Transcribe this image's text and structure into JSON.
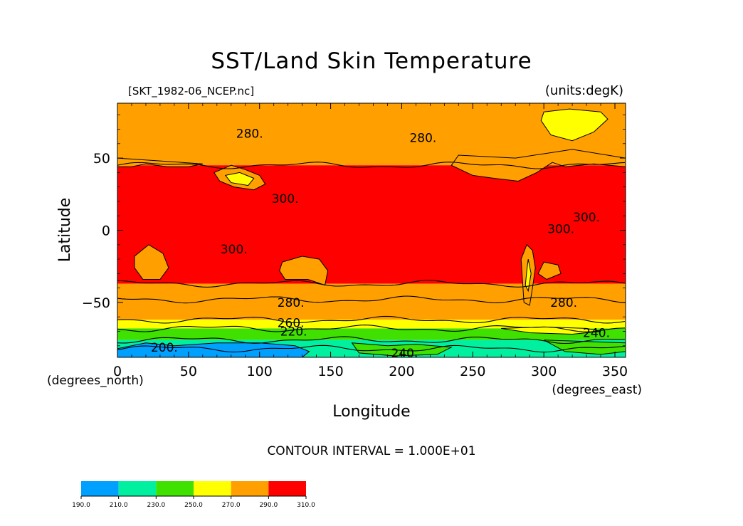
{
  "chart_data": {
    "type": "heatmap",
    "title": "SST/Land Skin Temperature",
    "subtitle_left": "[SKT_1982-06_NCEP.nc]",
    "subtitle_right": "(units:degK)",
    "xlabel": "Longitude",
    "ylabel": "Latitude",
    "xunit": "(degrees_east)",
    "yunit": "(degrees_north)",
    "xlim": [
      0,
      357.5
    ],
    "ylim": [
      -88,
      88
    ],
    "xticks": [
      0,
      50,
      100,
      150,
      200,
      250,
      300,
      350
    ],
    "yticks": [
      -50,
      0,
      50
    ],
    "contour_interval_text": "CONTOUR INTERVAL = 1.000E+01",
    "contour_labels": [
      {
        "text": "280.",
        "lon": 93,
        "lat": 67
      },
      {
        "text": "280.",
        "lon": 215,
        "lat": 64
      },
      {
        "text": "300.",
        "lon": 118,
        "lat": 22
      },
      {
        "text": "300.",
        "lon": 82,
        "lat": -13
      },
      {
        "text": "300.",
        "lon": 312,
        "lat": 1
      },
      {
        "text": "300.",
        "lon": 330,
        "lat": 9
      },
      {
        "text": "280.",
        "lon": 122,
        "lat": -50
      },
      {
        "text": "280.",
        "lon": 314,
        "lat": -50
      },
      {
        "text": "260.",
        "lon": 122,
        "lat": -64
      },
      {
        "text": "220.",
        "lon": 124,
        "lat": -70
      },
      {
        "text": "200.",
        "lon": 33,
        "lat": -81
      },
      {
        "text": "240.",
        "lon": 337,
        "lat": -71
      },
      {
        "text": "240.",
        "lon": 202,
        "lat": -85
      }
    ],
    "colorbar": {
      "levels": [
        "190.0",
        "210.0",
        "230.0",
        "250.0",
        "270.0",
        "290.0",
        "310.0"
      ],
      "colors": [
        "#00a0ff",
        "#00f0a0",
        "#40e000",
        "#ffff00",
        "#ffa000",
        "#ff0000"
      ]
    },
    "bands": [
      {
        "lat_min": 45,
        "lat_max": 88,
        "color": "#ffa000",
        "value_range": [
          270,
          290
        ]
      },
      {
        "lat_min": -37,
        "lat_max": 45,
        "color": "#ff0000",
        "value_range": [
          290,
          310
        ]
      },
      {
        "lat_min": -62,
        "lat_max": -37,
        "color": "#ffa000",
        "value_range": [
          270,
          290
        ]
      },
      {
        "lat_min": -68,
        "lat_max": -62,
        "color": "#ffff00",
        "value_range": [
          250,
          270
        ]
      },
      {
        "lat_min": -76,
        "lat_max": -68,
        "color": "#40e000",
        "value_range": [
          230,
          250
        ]
      },
      {
        "lat_min": -88,
        "lat_max": -76,
        "color": "#00f0a0",
        "value_range": [
          210,
          230
        ]
      }
    ],
    "regions": [
      {
        "name": "Greenland",
        "color": "#ffff00",
        "points": [
          [
            300,
            82
          ],
          [
            318,
            84
          ],
          [
            340,
            82
          ],
          [
            345,
            77
          ],
          [
            335,
            68
          ],
          [
            320,
            62
          ],
          [
            305,
            66
          ],
          [
            298,
            76
          ]
        ]
      },
      {
        "name": "Tibet",
        "color": "#ffa000",
        "points": [
          [
            68,
            40
          ],
          [
            80,
            45
          ],
          [
            90,
            42
          ],
          [
            100,
            38
          ],
          [
            104,
            32
          ],
          [
            96,
            28
          ],
          [
            82,
            30
          ],
          [
            72,
            34
          ]
        ]
      },
      {
        "name": "Tibet core",
        "color": "#ffff00",
        "points": [
          [
            76,
            38
          ],
          [
            86,
            40
          ],
          [
            96,
            36
          ],
          [
            92,
            31
          ],
          [
            80,
            33
          ]
        ]
      },
      {
        "name": "Southern Africa",
        "color": "#ffa000",
        "points": [
          [
            12,
            -18
          ],
          [
            22,
            -10
          ],
          [
            32,
            -16
          ],
          [
            36,
            -26
          ],
          [
            30,
            -34
          ],
          [
            18,
            -34
          ],
          [
            12,
            -26
          ]
        ]
      },
      {
        "name": "Australia",
        "color": "#ffa000",
        "points": [
          [
            116,
            -22
          ],
          [
            130,
            -18
          ],
          [
            142,
            -20
          ],
          [
            148,
            -28
          ],
          [
            146,
            -38
          ],
          [
            134,
            -34
          ],
          [
            118,
            -34
          ],
          [
            114,
            -28
          ]
        ]
      },
      {
        "name": "Andes",
        "color": "#ffa000",
        "points": [
          [
            288,
            -10
          ],
          [
            292,
            -14
          ],
          [
            294,
            -26
          ],
          [
            292,
            -40
          ],
          [
            290,
            -52
          ],
          [
            286,
            -50
          ],
          [
            285,
            -35
          ],
          [
            284,
            -20
          ]
        ]
      },
      {
        "name": "Andes core",
        "color": "#ffff00",
        "points": [
          [
            289,
            -20
          ],
          [
            291,
            -30
          ],
          [
            289,
            -42
          ],
          [
            287,
            -38
          ],
          [
            288,
            -28
          ]
        ]
      },
      {
        "name": "South America east",
        "color": "#ffa000",
        "points": [
          [
            300,
            -22
          ],
          [
            310,
            -24
          ],
          [
            312,
            -30
          ],
          [
            302,
            -34
          ],
          [
            296,
            -30
          ]
        ]
      },
      {
        "name": "North America",
        "color": "#ffa000",
        "points": [
          [
            235,
            45
          ],
          [
            250,
            38
          ],
          [
            265,
            36
          ],
          [
            282,
            34
          ],
          [
            295,
            40
          ],
          [
            306,
            47
          ],
          [
            315,
            44
          ],
          [
            335,
            46
          ],
          [
            357.5,
            44
          ],
          [
            357.5,
            50
          ],
          [
            320,
            56
          ],
          [
            280,
            50
          ],
          [
            240,
            52
          ]
        ]
      },
      {
        "name": "Europe west",
        "color": "#ffa000",
        "points": [
          [
            0,
            44
          ],
          [
            10,
            44
          ],
          [
            20,
            46
          ],
          [
            35,
            44
          ],
          [
            50,
            44
          ],
          [
            60,
            46
          ],
          [
            0,
            50
          ]
        ]
      },
      {
        "name": "Antarctica deep",
        "color": "#00a0ff",
        "points": [
          [
            40,
            -80
          ],
          [
            70,
            -78
          ],
          [
            100,
            -78
          ],
          [
            125,
            -80
          ],
          [
            135,
            -84
          ],
          [
            130,
            -88
          ],
          [
            0,
            -88
          ],
          [
            0,
            -82
          ],
          [
            20,
            -78
          ]
        ]
      },
      {
        "name": "Antarctica green east",
        "color": "#40e000",
        "points": [
          [
            300,
            -76
          ],
          [
            330,
            -77
          ],
          [
            357.5,
            -78
          ],
          [
            357.5,
            -84
          ],
          [
            340,
            -86
          ],
          [
            315,
            -84
          ]
        ]
      },
      {
        "name": "Antarctica green central",
        "color": "#40e000",
        "points": [
          [
            165,
            -78
          ],
          [
            190,
            -80
          ],
          [
            210,
            -79
          ],
          [
            235,
            -81
          ],
          [
            225,
            -86
          ],
          [
            195,
            -87
          ],
          [
            170,
            -85
          ]
        ]
      },
      {
        "name": "Antarctica yellow tongue",
        "color": "#ffff00",
        "points": [
          [
            270,
            -68
          ],
          [
            300,
            -67
          ],
          [
            330,
            -68
          ],
          [
            340,
            -70
          ],
          [
            320,
            -72
          ],
          [
            290,
            -71
          ]
        ]
      }
    ]
  }
}
